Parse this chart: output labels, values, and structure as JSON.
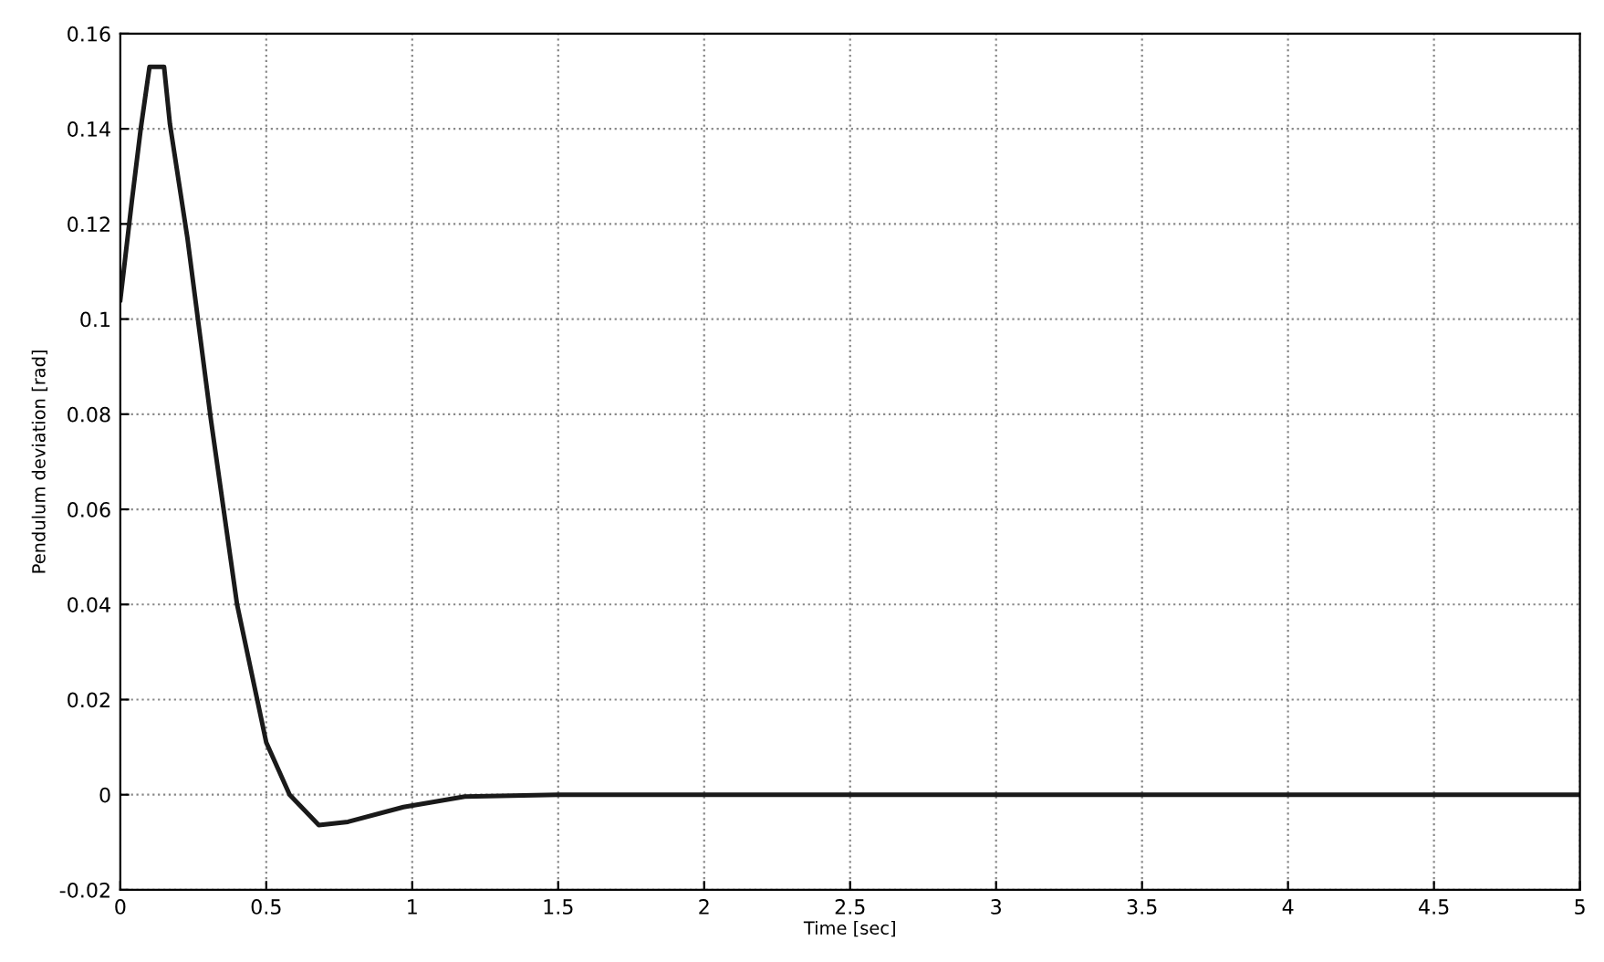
{
  "chart_data": {
    "type": "line",
    "xlabel": "Time [sec]",
    "ylabel": "Pendulum deviation [rad]",
    "x": [
      0,
      0.04,
      0.07,
      0.1,
      0.15,
      0.17,
      0.23,
      0.31,
      0.4,
      0.5,
      0.58,
      0.68,
      0.78,
      0.97,
      1.18,
      1.5,
      2,
      3,
      4,
      5
    ],
    "series": [
      {
        "color": "#1a1a1a",
        "values": [
          0.104,
          0.125,
          0.14,
          0.153,
          0.153,
          0.141,
          0.117,
          0.079,
          0.04,
          0.011,
          0,
          -0.0064,
          -0.0057,
          -0.0026,
          -0.0004,
          0,
          0,
          0,
          0,
          0
        ]
      }
    ],
    "xlim": [
      0,
      5
    ],
    "ylim": [
      -0.02,
      0.16
    ],
    "xticks": [
      0,
      0.5,
      1,
      1.5,
      2,
      2.5,
      3,
      3.5,
      4,
      4.5,
      5
    ],
    "yticks": [
      -0.02,
      0,
      0.02,
      0.04,
      0.06,
      0.08,
      0.1,
      0.12,
      0.14,
      0.16
    ],
    "grid": true,
    "legend": false,
    "marker": "none",
    "line_style": "solid"
  }
}
